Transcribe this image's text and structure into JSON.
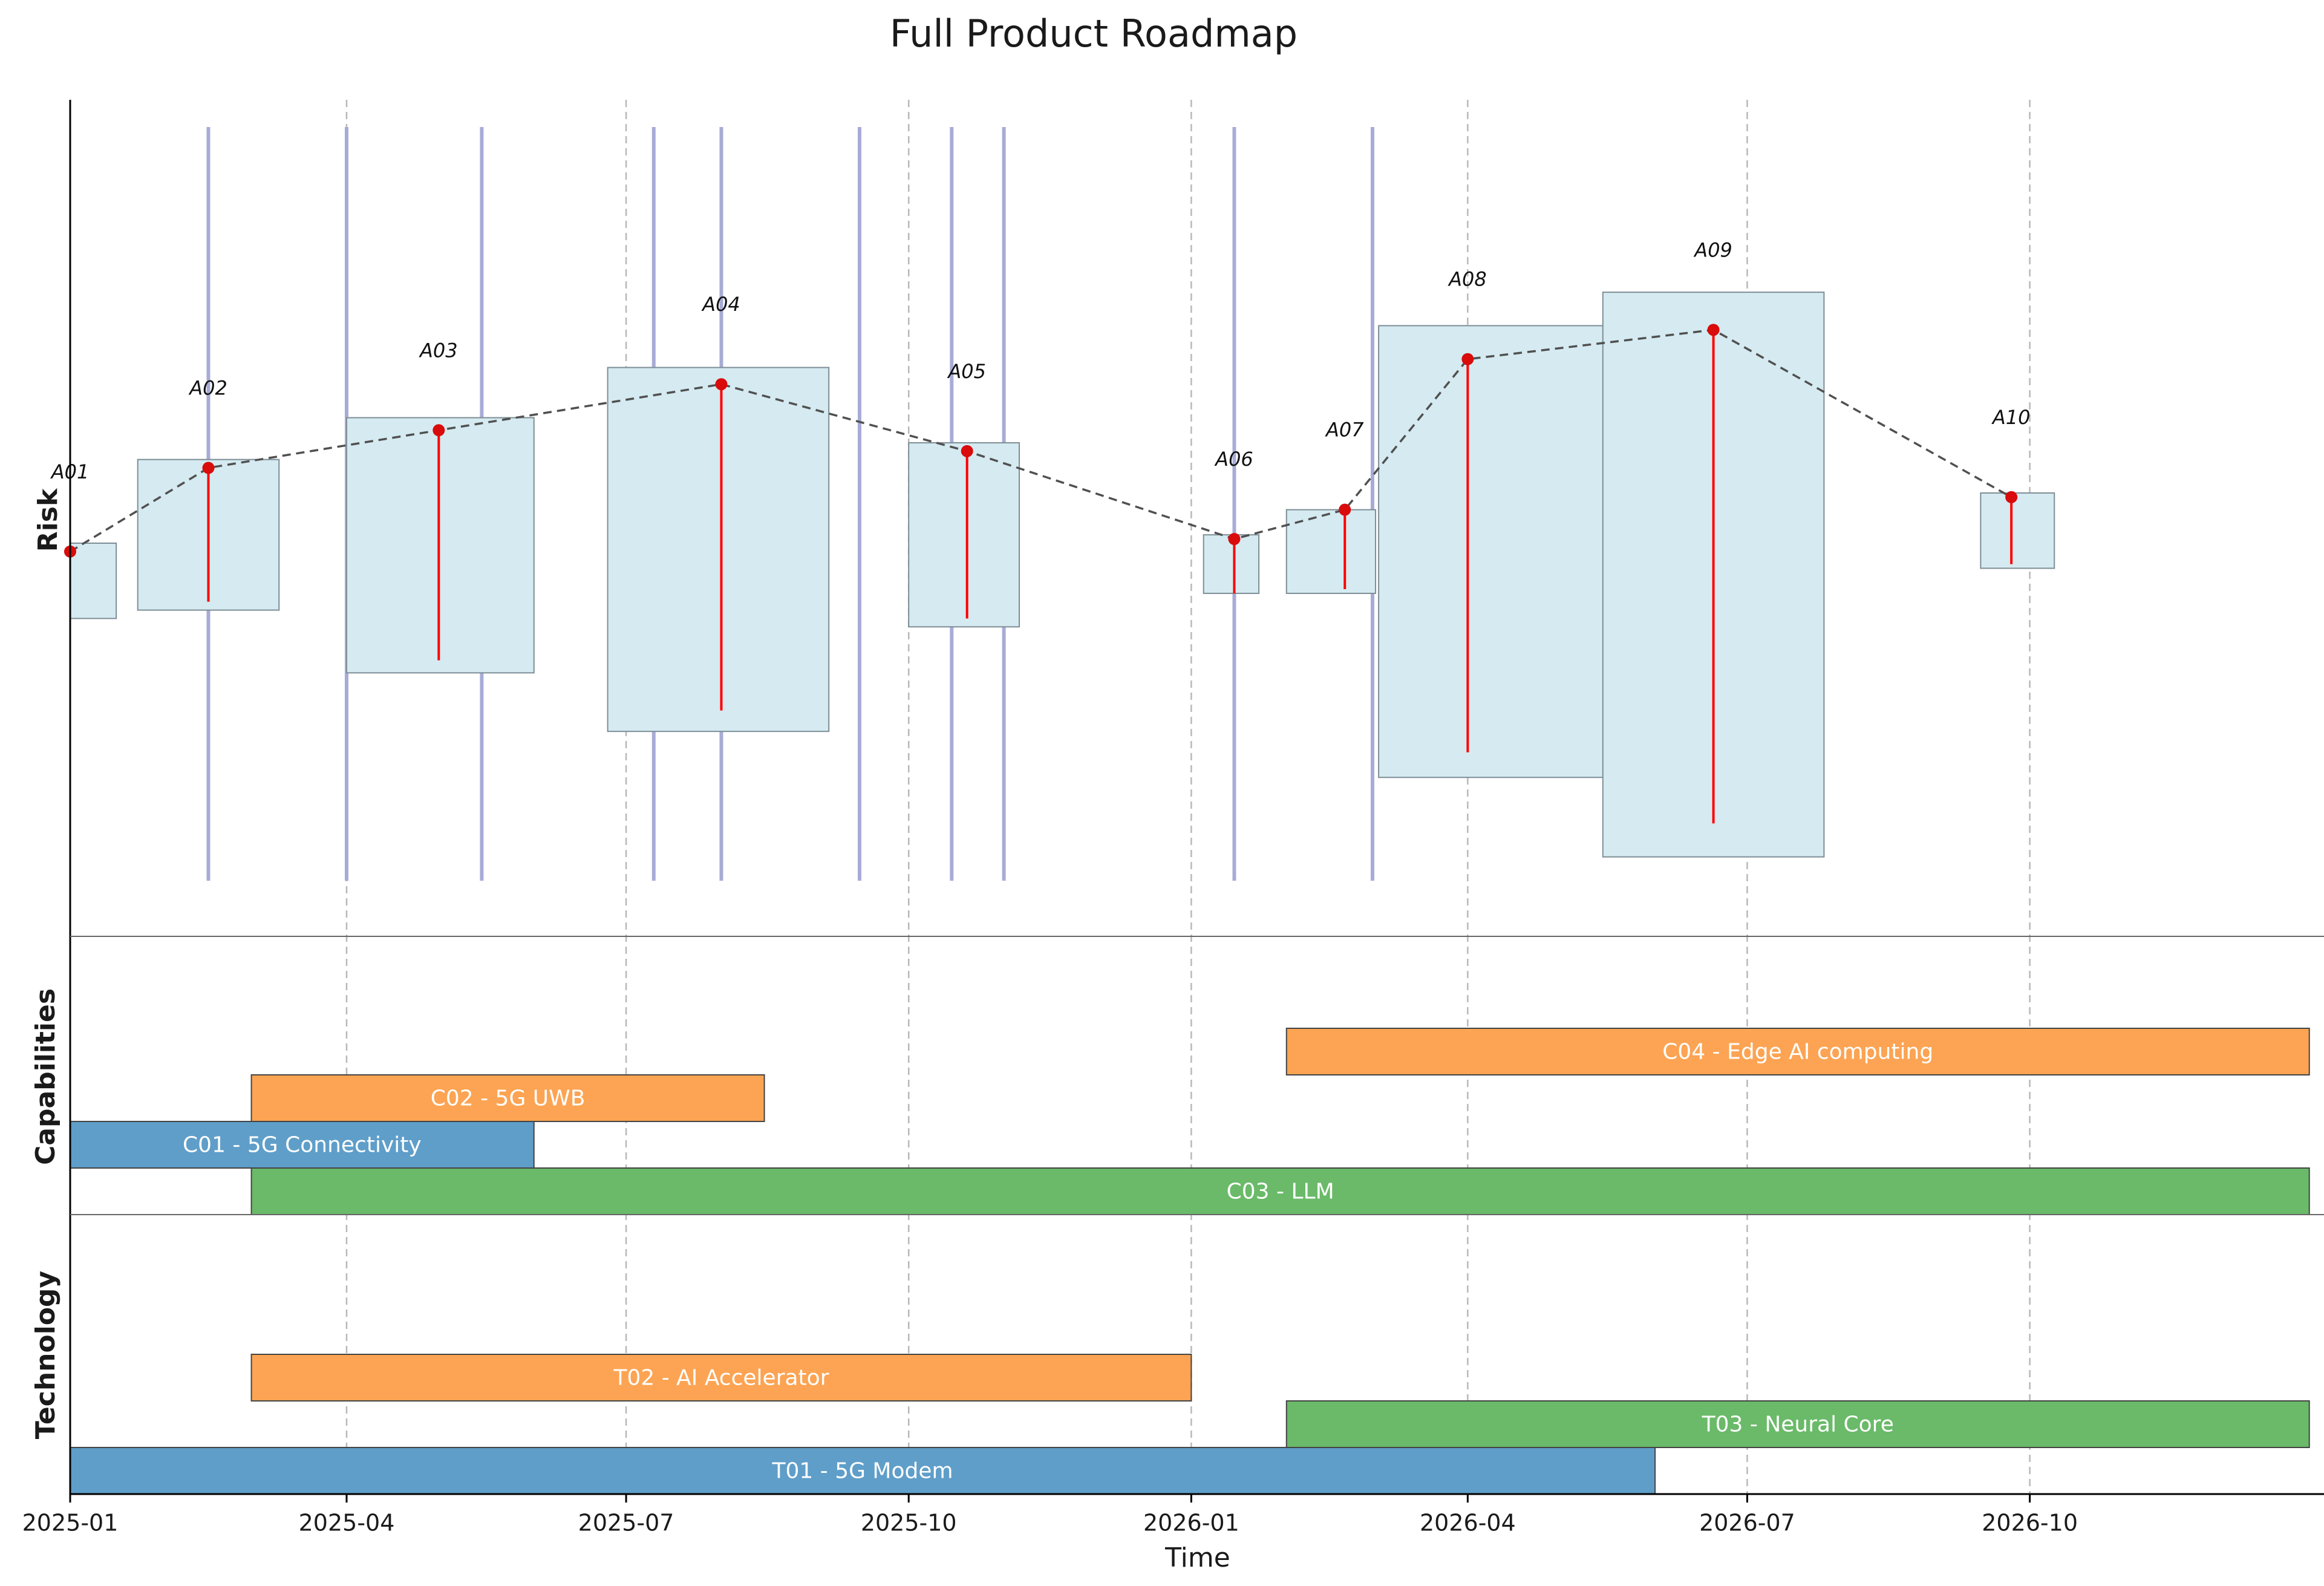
{
  "chart_data": {
    "type": "roadmap",
    "title": "Full Product Roadmap",
    "xlabel": "Time",
    "x_range": [
      "2025-01-01",
      "2026-12-31"
    ],
    "x_ticks": [
      "2025-01-01",
      "2025-04-01",
      "2025-07-01",
      "2025-10-01",
      "2026-01-01",
      "2026-04-01",
      "2026-07-01",
      "2026-10-01"
    ],
    "x_tick_labels": [
      "2025-01",
      "2025-04",
      "2025-07",
      "2025-10",
      "2026-01",
      "2026-04",
      "2026-07",
      "2026-10"
    ],
    "vertical_grid": true,
    "panels": {
      "risk": {
        "ylabel": "Risk",
        "y_range": [
          0,
          10
        ],
        "milestone_lines": [
          "2025-02-15",
          "2025-04-01",
          "2025-05-15",
          "2025-07-10",
          "2025-08-01",
          "2025-09-15",
          "2025-10-15",
          "2025-11-01",
          "2026-01-15",
          "2026-03-01"
        ],
        "series": [
          {
            "label": "A01",
            "date": "2025-01-01",
            "value": 4.6,
            "err_low": 0,
            "err_high": 0,
            "box": {
              "start": "2025-01-01",
              "end": "2025-01-16",
              "low": 3.8,
              "high": 4.7
            }
          },
          {
            "label": "A02",
            "date": "2025-02-15",
            "value": 5.6,
            "err_low": 4.0,
            "err_high": 5.6,
            "box": {
              "start": "2025-01-23",
              "end": "2025-03-10",
              "low": 3.9,
              "high": 5.7
            }
          },
          {
            "label": "A03",
            "date": "2025-05-01",
            "value": 6.05,
            "err_low": 3.3,
            "err_high": 6.05,
            "box": {
              "start": "2025-04-01",
              "end": "2025-06-01",
              "low": 3.15,
              "high": 6.2
            }
          },
          {
            "label": "A04",
            "date": "2025-08-01",
            "value": 6.6,
            "err_low": 2.7,
            "err_high": 6.6,
            "box": {
              "start": "2025-06-25",
              "end": "2025-09-05",
              "low": 2.45,
              "high": 6.8
            }
          },
          {
            "label": "A05",
            "date": "2025-10-20",
            "value": 5.8,
            "err_low": 3.8,
            "err_high": 5.8,
            "box": {
              "start": "2025-10-01",
              "end": "2025-11-06",
              "low": 3.7,
              "high": 5.9
            }
          },
          {
            "label": "A06",
            "date": "2026-01-15",
            "value": 4.75,
            "err_low": 4.1,
            "err_high": 4.75,
            "box": {
              "start": "2026-01-05",
              "end": "2026-01-23",
              "low": 4.1,
              "high": 4.8
            }
          },
          {
            "label": "A07",
            "date": "2026-02-20",
            "value": 5.1,
            "err_low": 4.15,
            "err_high": 5.1,
            "box": {
              "start": "2026-02-01",
              "end": "2026-03-02",
              "low": 4.1,
              "high": 5.1
            }
          },
          {
            "label": "A08",
            "date": "2026-04-01",
            "value": 6.9,
            "err_low": 2.2,
            "err_high": 6.9,
            "box": {
              "start": "2026-03-03",
              "end": "2026-05-27",
              "low": 1.9,
              "high": 7.3
            }
          },
          {
            "label": "A09",
            "date": "2026-06-20",
            "value": 7.25,
            "err_low": 1.35,
            "err_high": 7.25,
            "box": {
              "start": "2026-05-15",
              "end": "2026-07-26",
              "low": 0.95,
              "high": 7.7
            }
          },
          {
            "label": "A10",
            "date": "2026-09-25",
            "value": 5.25,
            "err_low": 4.45,
            "err_high": 5.25,
            "box": {
              "start": "2026-09-15",
              "end": "2026-10-09",
              "low": 4.4,
              "high": 5.3
            }
          }
        ]
      },
      "capabilities": {
        "ylabel": "Capabilities",
        "bars": [
          {
            "label": "C01 - 5G Connectivity",
            "start": "2025-01-01",
            "end": "2025-06-01",
            "row": 1,
            "color": "#5f9ec9"
          },
          {
            "label": "C02 - 5G UWB",
            "start": "2025-03-01",
            "end": "2025-08-15",
            "row": 2,
            "color": "#fca453"
          },
          {
            "label": "C03 - LLM",
            "start": "2025-03-01",
            "end": "2026-12-31",
            "row": 0,
            "color": "#6aba69"
          },
          {
            "label": "C04 - Edge AI computing",
            "start": "2026-02-01",
            "end": "2026-12-31",
            "row": 3,
            "color": "#fca453"
          }
        ]
      },
      "technology": {
        "ylabel": "Technology",
        "bars": [
          {
            "label": "T01 - 5G Modem",
            "start": "2025-01-01",
            "end": "2026-06-01",
            "row": 0,
            "color": "#5f9ec9"
          },
          {
            "label": "T02 - AI Accelerator",
            "start": "2025-03-01",
            "end": "2026-01-01",
            "row": 2,
            "color": "#fca453"
          },
          {
            "label": "T03 - Neural Core",
            "start": "2026-02-01",
            "end": "2026-12-31",
            "row": 1,
            "color": "#6aba69"
          }
        ]
      }
    },
    "colors": {
      "risk_box_fill": "#d5eaf1",
      "risk_box_edge": "#7e8e96",
      "risk_point": "#d90b0b",
      "risk_errbar": "#ff0000",
      "risk_trend": "#505050",
      "milestone_line": "#a7acd6",
      "grid": "#b8b8b8",
      "bar_edge": "#444444",
      "bar_text": "#ffffff"
    }
  }
}
